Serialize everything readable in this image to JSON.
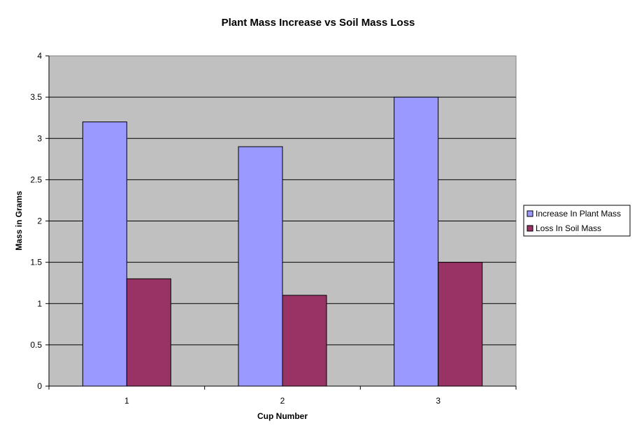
{
  "chart_data": {
    "type": "bar",
    "title": "Plant Mass Increase vs Soil Mass Loss",
    "xlabel": "Cup Number",
    "ylabel": "Mass in Grams",
    "categories": [
      "1",
      "2",
      "3"
    ],
    "series": [
      {
        "name": "Increase In Plant Mass",
        "values": [
          3.2,
          2.9,
          3.5
        ],
        "color": "#9999FF"
      },
      {
        "name": "Loss In Soil Mass",
        "values": [
          1.3,
          1.1,
          1.5
        ],
        "color": "#993366"
      }
    ],
    "ylim": [
      0,
      4
    ],
    "yticks": [
      "0",
      "0.5",
      "1",
      "1.5",
      "2",
      "2.5",
      "3",
      "3.5",
      "4"
    ],
    "grid": true,
    "plot_background": "#C0C0C0",
    "legend_position": "right"
  }
}
